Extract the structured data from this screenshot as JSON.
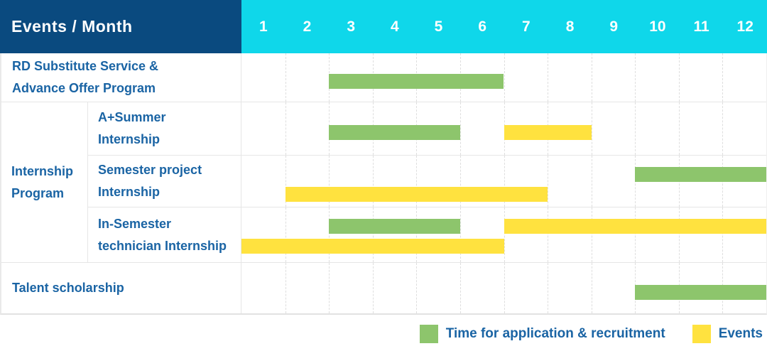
{
  "header": {
    "title": "Events / Month",
    "months": [
      "1",
      "2",
      "3",
      "4",
      "5",
      "6",
      "7",
      "8",
      "9",
      "10",
      "11",
      "12"
    ]
  },
  "colors": {
    "header_bg": "#0a4a7f",
    "months_bg": "#0fd7ea",
    "application": "#8dc56c",
    "event": "#ffe23f",
    "label_text": "#1a64a4"
  },
  "sections": [
    {
      "type": "row",
      "label_lines": [
        "RD Substitute Service &",
        "Advance Offer Program"
      ],
      "tracks": 1,
      "bars": [
        {
          "kind": "application",
          "start": 3,
          "end": 6,
          "track": 0
        }
      ]
    },
    {
      "type": "group",
      "label_lines": [
        "Internship",
        "Program"
      ],
      "rows": [
        {
          "label_lines": [
            "A+Summer",
            "Internship"
          ],
          "tracks": 1,
          "bars": [
            {
              "kind": "application",
              "start": 3,
              "end": 5,
              "track": 0
            },
            {
              "kind": "event",
              "start": 7,
              "end": 8,
              "track": 0
            }
          ]
        },
        {
          "label_lines": [
            "Semester project",
            "Internship"
          ],
          "tracks": 2,
          "bars": [
            {
              "kind": "application",
              "start": 10,
              "end": 12,
              "track": 0
            },
            {
              "kind": "event",
              "start": 2,
              "end": 7,
              "track": 1
            }
          ]
        },
        {
          "label_lines": [
            "In-Semester",
            "technician Internship"
          ],
          "tracks": 2,
          "bars": [
            {
              "kind": "application",
              "start": 3,
              "end": 5,
              "track": 0
            },
            {
              "kind": "event",
              "start": 7,
              "end": 12,
              "track": 0
            },
            {
              "kind": "event",
              "start": 1,
              "end": 6,
              "track": 1
            }
          ]
        }
      ]
    },
    {
      "type": "row",
      "label_lines": [
        "Talent scholarship"
      ],
      "tracks": 1,
      "bars": [
        {
          "kind": "application",
          "start": 10,
          "end": 12,
          "track": 0
        }
      ]
    }
  ],
  "legend": [
    {
      "kind": "application",
      "label": "Time for application & recruitment"
    },
    {
      "kind": "event",
      "label": "Events"
    }
  ],
  "chart_data": {
    "type": "gantt",
    "title": "Events / Month",
    "x_axis": {
      "label": "Month",
      "ticks": [
        1,
        2,
        3,
        4,
        5,
        6,
        7,
        8,
        9,
        10,
        11,
        12
      ],
      "range": [
        1,
        12
      ]
    },
    "legend_entries": [
      "Time for application & recruitment",
      "Events"
    ],
    "tasks": [
      {
        "name": "RD Substitute Service & Advance Offer Program",
        "group": null,
        "application_recruitment_months": [
          [
            3,
            6
          ]
        ],
        "event_months": []
      },
      {
        "name": "A+Summer Internship",
        "group": "Internship Program",
        "application_recruitment_months": [
          [
            3,
            5
          ]
        ],
        "event_months": [
          [
            7,
            8
          ]
        ]
      },
      {
        "name": "Semester project Internship",
        "group": "Internship Program",
        "application_recruitment_months": [
          [
            10,
            12
          ]
        ],
        "event_months": [
          [
            2,
            7
          ]
        ]
      },
      {
        "name": "In-Semester technician Internship",
        "group": "Internship Program",
        "application_recruitment_months": [
          [
            3,
            5
          ]
        ],
        "event_months": [
          [
            7,
            12
          ],
          [
            1,
            6
          ]
        ]
      },
      {
        "name": "Talent scholarship",
        "group": null,
        "application_recruitment_months": [
          [
            10,
            12
          ]
        ],
        "event_months": []
      }
    ]
  }
}
